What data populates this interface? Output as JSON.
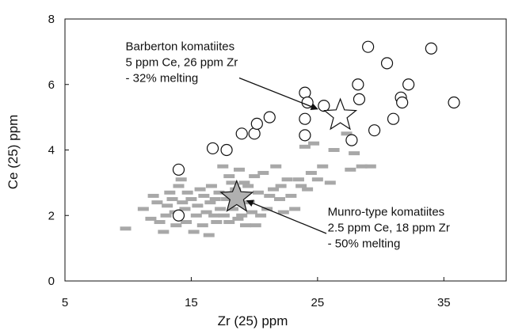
{
  "chart_data": {
    "type": "scatter",
    "title": "",
    "xlabel": "Zr (25) ppm",
    "ylabel": "Ce (25) ppm",
    "xlim": [
      5,
      40
    ],
    "ylim": [
      0,
      8
    ],
    "xticks": [
      5,
      15,
      25,
      35
    ],
    "yticks": [
      0,
      2,
      4,
      6,
      8
    ],
    "grid": false,
    "legend": "none",
    "series": [
      {
        "marker": "open-circle",
        "color": "#111111",
        "points": [
          [
            14,
            3.4
          ],
          [
            14,
            2.0
          ],
          [
            16.7,
            4.05
          ],
          [
            17.8,
            4.0
          ],
          [
            19,
            4.5
          ],
          [
            20,
            4.5
          ],
          [
            20.2,
            4.8
          ],
          [
            21.2,
            5.0
          ],
          [
            24,
            5.75
          ],
          [
            24,
            4.95
          ],
          [
            24,
            4.45
          ],
          [
            24.2,
            5.45
          ],
          [
            25.5,
            5.35
          ],
          [
            27.7,
            4.3
          ],
          [
            28.2,
            6.0
          ],
          [
            28.3,
            5.55
          ],
          [
            29,
            7.15
          ],
          [
            29.5,
            4.6
          ],
          [
            30.5,
            6.65
          ],
          [
            31,
            4.95
          ],
          [
            31.6,
            5.6
          ],
          [
            31.7,
            5.45
          ],
          [
            32.2,
            6.0
          ],
          [
            34,
            7.1
          ],
          [
            35.8,
            5.45
          ]
        ]
      },
      {
        "marker": "gray-dash",
        "color": "#a8a8a8",
        "points": [
          [
            9.8,
            1.6
          ],
          [
            11.2,
            2.2
          ],
          [
            11.8,
            1.9
          ],
          [
            12,
            2.6
          ],
          [
            12.3,
            2.4
          ],
          [
            12.5,
            1.8
          ],
          [
            12.8,
            1.5
          ],
          [
            13,
            2.0
          ],
          [
            13.1,
            2.3
          ],
          [
            13.3,
            2.7
          ],
          [
            13.5,
            2.5
          ],
          [
            13.7,
            2.1
          ],
          [
            13.8,
            1.7
          ],
          [
            14,
            2.9
          ],
          [
            14.2,
            3.1
          ],
          [
            14.3,
            2.4
          ],
          [
            14.5,
            2.2
          ],
          [
            14.6,
            1.8
          ],
          [
            14.7,
            2.7
          ],
          [
            15,
            2.5
          ],
          [
            15.2,
            1.5
          ],
          [
            15.4,
            2.0
          ],
          [
            15.5,
            2.3
          ],
          [
            15.7,
            2.8
          ],
          [
            15.9,
            1.7
          ],
          [
            16,
            2.6
          ],
          [
            16.2,
            2.1
          ],
          [
            16.4,
            1.4
          ],
          [
            16.5,
            2.4
          ],
          [
            16.6,
            2.9
          ],
          [
            16.8,
            2.0
          ],
          [
            16.9,
            2.5
          ],
          [
            17,
            1.8
          ],
          [
            17.2,
            2.7
          ],
          [
            17.3,
            2.2
          ],
          [
            17.5,
            3.5
          ],
          [
            17.6,
            2.0
          ],
          [
            17.8,
            2.5
          ],
          [
            18,
            3.2
          ],
          [
            18,
            1.8
          ],
          [
            18.2,
            3.0
          ],
          [
            18.3,
            2.2
          ],
          [
            18.5,
            2.8
          ],
          [
            18.7,
            1.9
          ],
          [
            18.8,
            3.4
          ],
          [
            19,
            2.0
          ],
          [
            19.2,
            3.0
          ],
          [
            19.3,
            1.7
          ],
          [
            19.5,
            2.9
          ],
          [
            19.6,
            2.4
          ],
          [
            19.8,
            2.1
          ],
          [
            20,
            3.2
          ],
          [
            20.1,
            1.7
          ],
          [
            20.3,
            2.7
          ],
          [
            20.5,
            2.0
          ],
          [
            20.7,
            3.3
          ],
          [
            21,
            2.2
          ],
          [
            21.2,
            2.6
          ],
          [
            21.5,
            2.8
          ],
          [
            21.7,
            3.5
          ],
          [
            22,
            2.5
          ],
          [
            22.1,
            2.9
          ],
          [
            22.3,
            2.1
          ],
          [
            22.6,
            3.1
          ],
          [
            22.9,
            2.6
          ],
          [
            23.2,
            2.2
          ],
          [
            23.5,
            3.1
          ],
          [
            23.7,
            2.9
          ],
          [
            24.2,
            2.8
          ],
          [
            24.5,
            3.3
          ],
          [
            24.7,
            4.2
          ],
          [
            25,
            3.1
          ],
          [
            25.4,
            3.5
          ],
          [
            26,
            3.0
          ],
          [
            26.3,
            4.0
          ],
          [
            27.3,
            4.5
          ],
          [
            27.6,
            3.4
          ],
          [
            27.9,
            3.9
          ],
          [
            28.5,
            3.5
          ],
          [
            29.2,
            3.5
          ],
          [
            24.0,
            4.1
          ]
        ]
      },
      {
        "marker": "star-open",
        "color": "#ffffff",
        "points": [
          [
            26.8,
            5.05
          ]
        ]
      },
      {
        "marker": "star-gray",
        "color": "#b0b0b0",
        "points": [
          [
            18.6,
            2.55
          ]
        ]
      }
    ],
    "annotations": [
      {
        "lines": [
          "Barberton komatiites",
          "5 ppm Ce, 26 ppm Zr",
          "- 32% melting"
        ],
        "anchor": [
          9.8,
          7.05
        ],
        "arrow_from": [
          18.8,
          6.2
        ],
        "arrow_to": [
          25.0,
          5.25
        ]
      },
      {
        "lines": [
          "Munro-type komatiites",
          "2.5 ppm Ce, 18 ppm Zr",
          "- 50% melting"
        ],
        "anchor": [
          25.8,
          2.0
        ],
        "arrow_from": [
          25.7,
          1.45
        ],
        "arrow_to": [
          19.4,
          2.45
        ]
      }
    ]
  }
}
